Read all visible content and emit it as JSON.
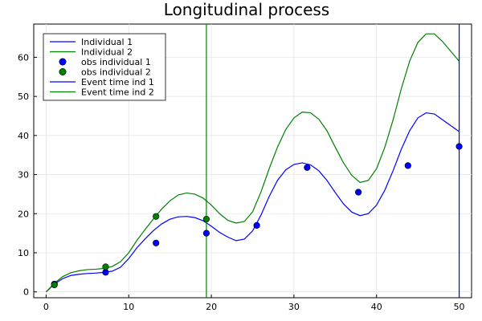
{
  "chart_data": {
    "type": "line",
    "title": "Longitudinal process",
    "xlabel": "",
    "ylabel": "",
    "xlim": [
      -1.5,
      51.5
    ],
    "ylim": [
      -1.5,
      68.5
    ],
    "x_ticks": [
      0,
      10,
      20,
      30,
      40,
      50
    ],
    "y_ticks": [
      0,
      10,
      20,
      30,
      40,
      50,
      60
    ],
    "grid": true,
    "legend_position": "top-left",
    "series": [
      {
        "name": "Individual 1",
        "kind": "line",
        "color": "#0000ff",
        "x": [
          0,
          1,
          2,
          3,
          4,
          5,
          6,
          7,
          8,
          9,
          10,
          11,
          12,
          13,
          14,
          15,
          16,
          17,
          18,
          19,
          20,
          21,
          22,
          23,
          24,
          25,
          26,
          27,
          28,
          29,
          30,
          31,
          32,
          33,
          34,
          35,
          36,
          37,
          38,
          39,
          40,
          41,
          42,
          43,
          44,
          45,
          46,
          47,
          48,
          49,
          50
        ],
        "y": [
          0,
          2.0,
          3.4,
          4.2,
          4.5,
          4.7,
          4.8,
          5.0,
          5.3,
          6.3,
          8.5,
          11.3,
          13.6,
          15.7,
          17.4,
          18.6,
          19.2,
          19.3,
          19.0,
          18.2,
          16.8,
          15.2,
          14.0,
          13.1,
          13.5,
          15.6,
          19.6,
          24.4,
          28.5,
          31.2,
          32.6,
          33.0,
          32.5,
          31.0,
          28.5,
          25.4,
          22.5,
          20.4,
          19.5,
          20.0,
          22.2,
          26.0,
          31.0,
          36.5,
          41.2,
          44.5,
          45.8,
          45.5,
          44.0,
          42.5,
          41.0
        ]
      },
      {
        "name": "Individual 2",
        "kind": "line",
        "color": "#008000",
        "x": [
          0,
          1,
          2,
          3,
          4,
          5,
          6,
          7,
          8,
          9,
          10,
          11,
          12,
          13,
          14,
          15,
          16,
          17,
          18,
          19,
          20,
          21,
          22,
          23,
          24,
          25,
          26,
          27,
          28,
          29,
          30,
          31,
          32,
          33,
          34,
          35,
          36,
          37,
          38,
          39,
          40,
          41,
          42,
          43,
          44,
          45,
          46,
          47,
          48,
          49,
          50
        ],
        "y": [
          0,
          2.2,
          3.9,
          4.9,
          5.4,
          5.7,
          5.8,
          6.0,
          6.5,
          7.7,
          10.0,
          13.2,
          16.0,
          18.7,
          21.2,
          23.3,
          24.8,
          25.3,
          25.0,
          24.0,
          22.2,
          20.0,
          18.3,
          17.6,
          18.0,
          20.5,
          25.5,
          31.5,
          37.0,
          41.5,
          44.5,
          46.0,
          45.8,
          44.2,
          41.2,
          37.0,
          33.0,
          29.8,
          28.0,
          28.5,
          31.5,
          37.0,
          44.0,
          52.0,
          59.0,
          63.8,
          66.0,
          66.0,
          64.0,
          61.5,
          59.0
        ]
      },
      {
        "name": "obs individual 1",
        "kind": "points",
        "color": "#0000ff",
        "x": [
          1,
          7.2,
          13.3,
          19.4,
          25.5,
          31.6,
          37.8,
          43.8,
          50
        ],
        "y": [
          2.0,
          5.0,
          12.5,
          15.0,
          17.0,
          31.8,
          25.5,
          32.3,
          37.2
        ]
      },
      {
        "name": "obs individual 2",
        "kind": "points",
        "color": "#008000",
        "x": [
          1,
          7.2,
          13.3,
          19.4
        ],
        "y": [
          1.8,
          6.4,
          19.3,
          18.6
        ]
      },
      {
        "name": "Event time ind 1",
        "kind": "vline",
        "color": "#0000ff",
        "x": 50
      },
      {
        "name": "Event time ind 2",
        "kind": "vline",
        "color": "#008000",
        "x": 19.4
      }
    ]
  }
}
